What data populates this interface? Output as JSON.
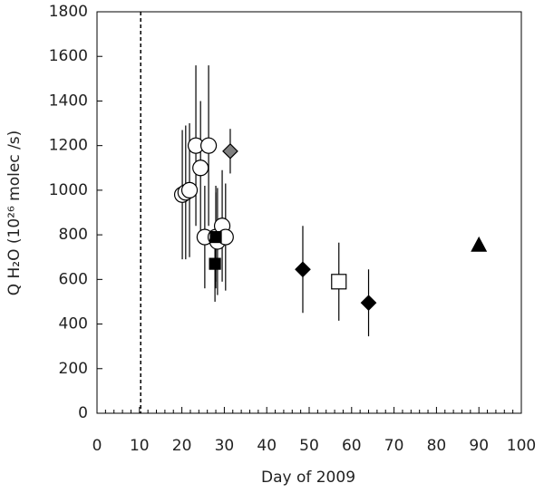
{
  "chart_data": {
    "type": "scatter",
    "x_label": "Day of 2009",
    "y_label": "Q H₂O (10²⁶ molec /s)",
    "xlim": [
      0,
      100
    ],
    "xticks": [
      0,
      10,
      20,
      30,
      40,
      50,
      60,
      70,
      80,
      90,
      100
    ],
    "ylim": [
      0,
      1800
    ],
    "yticks": [
      0,
      200,
      400,
      600,
      800,
      1000,
      1200,
      1400,
      1600,
      1800
    ],
    "grid": false,
    "reference_lines_x": [
      10.3
    ],
    "series": [
      {
        "marker": "circle",
        "color": "#ffffff",
        "x": [
          20.1,
          20.9,
          21.8,
          23.3,
          24.4,
          26.3,
          25.4,
          28.0,
          28.4,
          29.5,
          30.3
        ],
        "values": [
          980,
          990,
          1000,
          1200,
          1100,
          1200,
          790,
          790,
          770,
          840,
          790
        ],
        "errors": [
          290,
          300,
          300,
          360,
          300,
          360,
          230,
          230,
          240,
          250,
          240
        ]
      },
      {
        "marker": "square",
        "color": "#000000",
        "x": [
          28.0,
          27.8
        ],
        "values": [
          790,
          670
        ],
        "errors": [
          200,
          170
        ]
      },
      {
        "marker": "diamond",
        "color": "#808080",
        "x": [
          31.4
        ],
        "values": [
          1175
        ],
        "errors": [
          100
        ]
      },
      {
        "marker": "diamond",
        "color": "#000000",
        "x": [
          48.5,
          64.0
        ],
        "values": [
          645,
          495
        ],
        "errors": [
          195,
          150
        ]
      },
      {
        "marker": "square",
        "color": "#ffffff",
        "x": [
          57.0
        ],
        "values": [
          590
        ],
        "errors": [
          175
        ]
      },
      {
        "marker": "triangle",
        "color": "#000000",
        "x": [
          90.0
        ],
        "values": [
          755
        ]
      }
    ]
  }
}
